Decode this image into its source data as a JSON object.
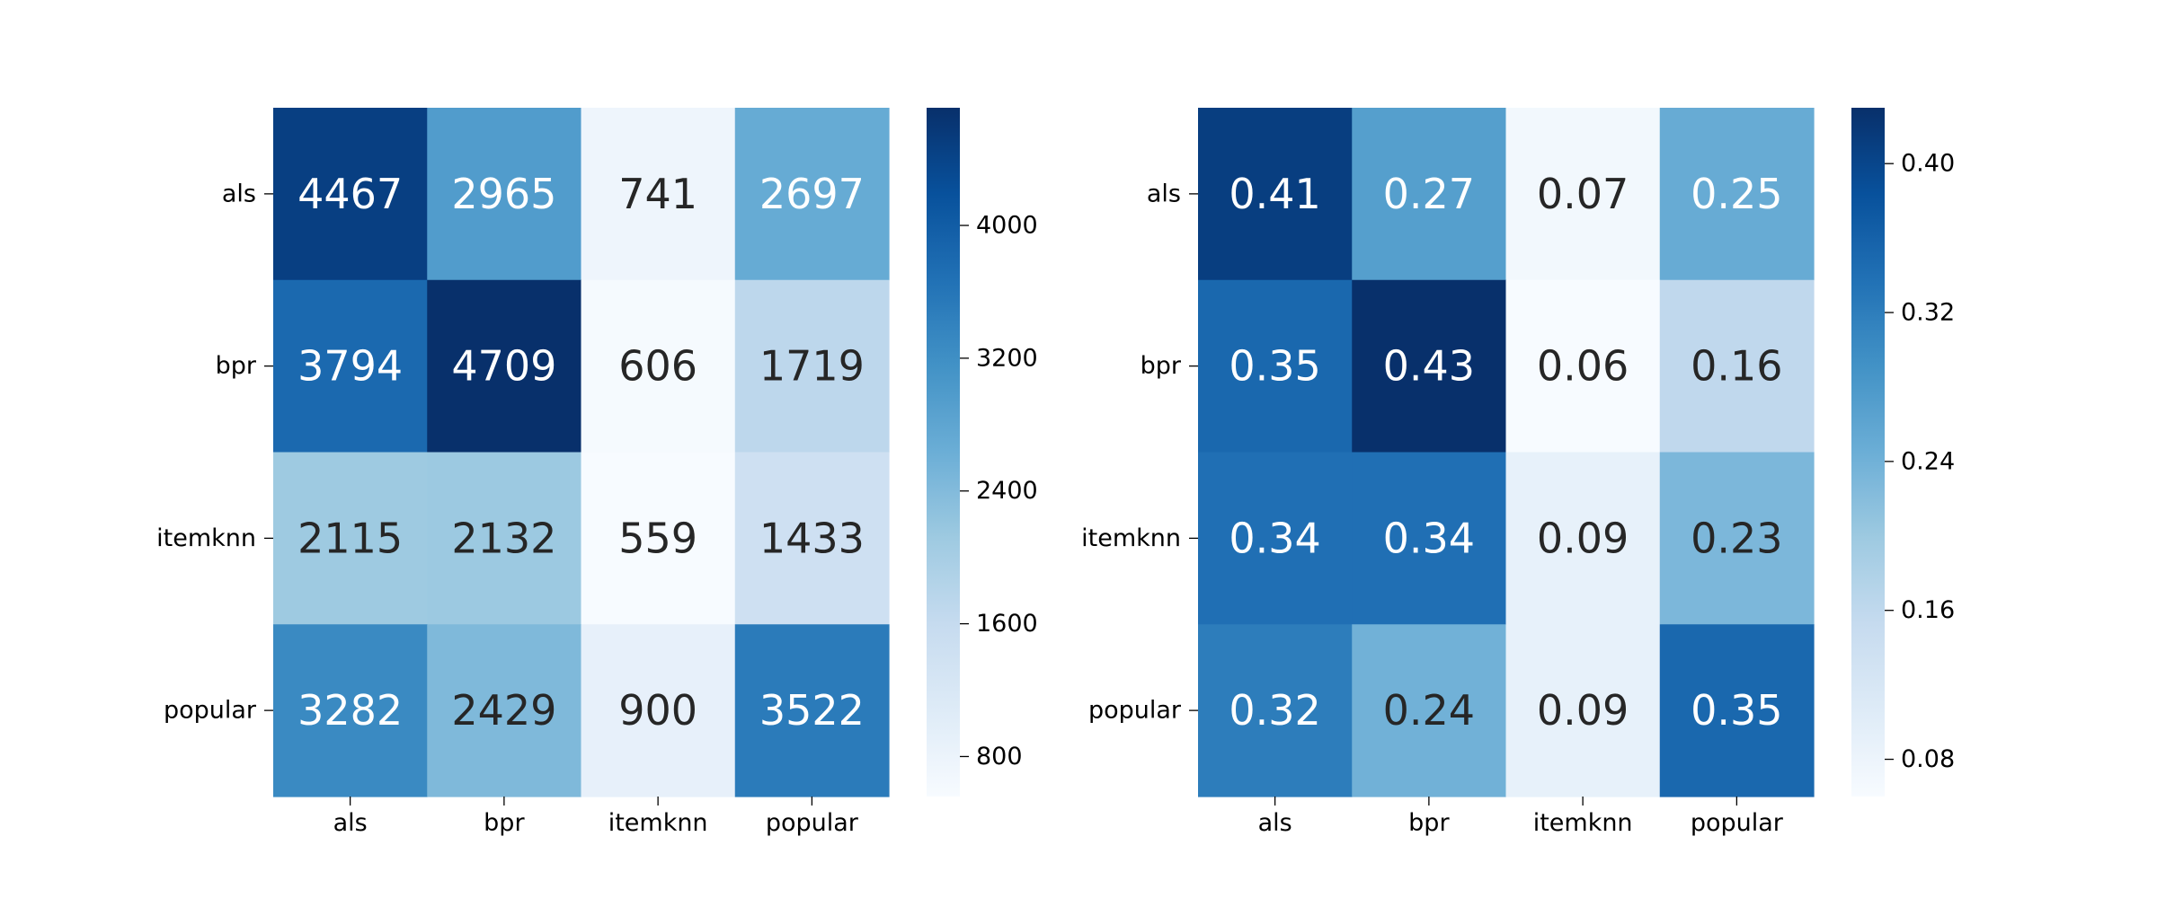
{
  "chart_data": [
    {
      "type": "heatmap",
      "title": "",
      "xlabel": "",
      "ylabel": "",
      "x_categories": [
        "als",
        "bpr",
        "itemknn",
        "popular"
      ],
      "y_categories": [
        "als",
        "bpr",
        "itemknn",
        "popular"
      ],
      "values": [
        [
          4467,
          2965,
          741,
          2697
        ],
        [
          3794,
          4709,
          606,
          1719
        ],
        [
          2115,
          2132,
          559,
          1433
        ],
        [
          3282,
          2429,
          900,
          3522
        ]
      ],
      "cell_labels": [
        [
          "4467",
          "2965",
          "741",
          "2697"
        ],
        [
          "3794",
          "4709",
          "606",
          "1719"
        ],
        [
          "2115",
          "2132",
          "559",
          "1433"
        ],
        [
          "3282",
          "2429",
          "900",
          "3522"
        ]
      ],
      "colormap": "Blues",
      "colorbar": {
        "range": [
          559,
          4709
        ],
        "ticks": [
          800,
          1600,
          2400,
          3200,
          4000
        ],
        "tick_labels": [
          "800",
          "1600",
          "2400",
          "3200",
          "4000"
        ]
      }
    },
    {
      "type": "heatmap",
      "title": "",
      "xlabel": "",
      "ylabel": "",
      "x_categories": [
        "als",
        "bpr",
        "itemknn",
        "popular"
      ],
      "y_categories": [
        "als",
        "bpr",
        "itemknn",
        "popular"
      ],
      "values": [
        [
          0.41,
          0.27,
          0.07,
          0.25
        ],
        [
          0.35,
          0.43,
          0.06,
          0.16
        ],
        [
          0.34,
          0.34,
          0.09,
          0.23
        ],
        [
          0.32,
          0.24,
          0.09,
          0.35
        ]
      ],
      "cell_labels": [
        [
          "0.41",
          "0.27",
          "0.07",
          "0.25"
        ],
        [
          "0.35",
          "0.43",
          "0.06",
          "0.16"
        ],
        [
          "0.34",
          "0.34",
          "0.09",
          "0.23"
        ],
        [
          "0.32",
          "0.24",
          "0.09",
          "0.35"
        ]
      ],
      "colormap": "Blues",
      "colorbar": {
        "range": [
          0.06,
          0.43
        ],
        "ticks": [
          0.08,
          0.16,
          0.24,
          0.32,
          0.4
        ],
        "tick_labels": [
          "0.08",
          "0.16",
          "0.24",
          "0.32",
          "0.40"
        ]
      }
    }
  ]
}
